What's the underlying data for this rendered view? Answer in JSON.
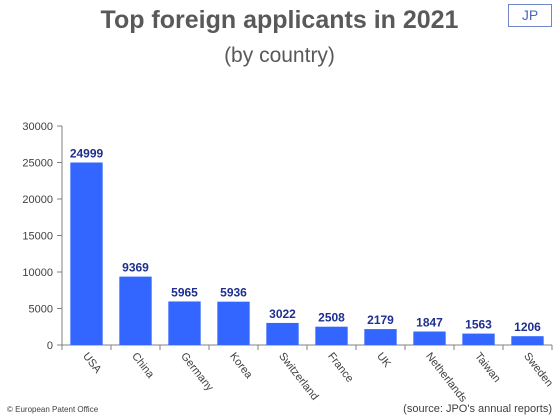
{
  "badge": "JP",
  "footer": {
    "left": "© European Patent Office",
    "right": "(source: JPO's annual reports)"
  },
  "colors": {
    "bar": "#3366ff",
    "value_label": "#1f2f8f",
    "axis": "#808080",
    "text": "#595959"
  },
  "chart_data": {
    "type": "bar",
    "title": "Top foreign applicants in 2021",
    "subtitle": "(by country)",
    "xlabel": "",
    "ylabel": "",
    "categories": [
      "USA",
      "China",
      "Germany",
      "Korea",
      "Switzerland",
      "France",
      "UK",
      "Netherlands",
      "Taiwan",
      "Sweden"
    ],
    "values": [
      24999,
      9369,
      5965,
      5936,
      3022,
      2508,
      2179,
      1847,
      1563,
      1206
    ],
    "ylim": [
      0,
      30000
    ],
    "yticks": [
      0,
      5000,
      10000,
      15000,
      20000,
      25000,
      30000
    ],
    "grid": false,
    "legend": "none"
  }
}
